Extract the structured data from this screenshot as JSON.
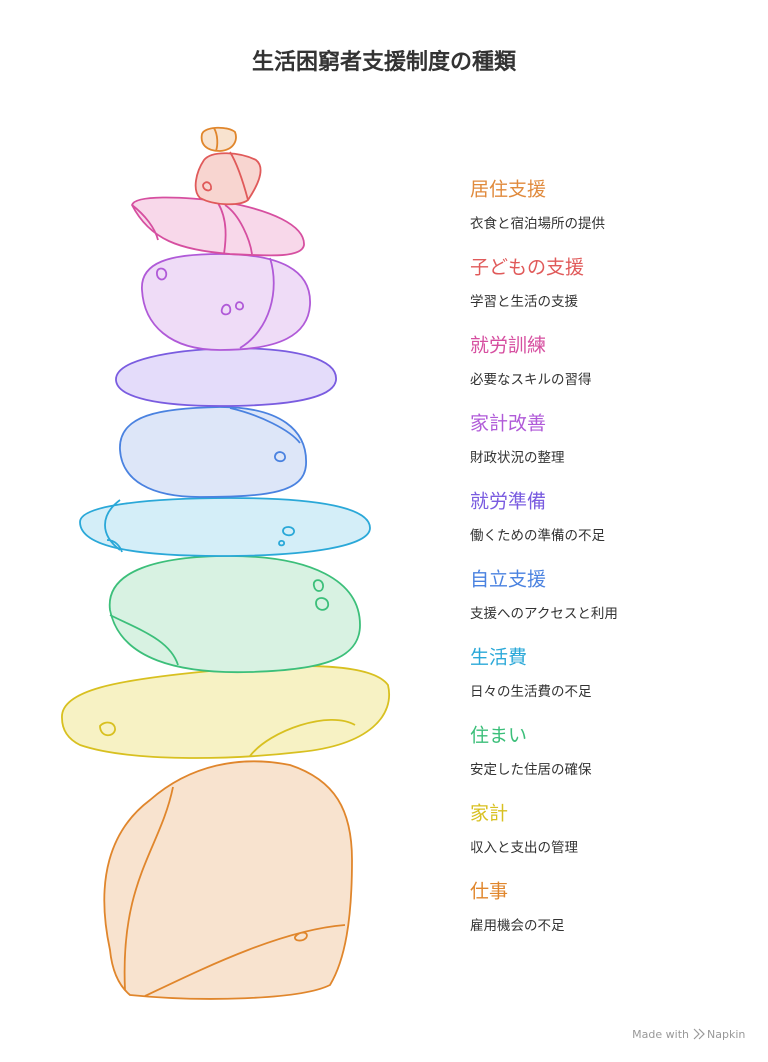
{
  "header": {
    "title": "生活困窮者支援制度の種類"
  },
  "items": [
    {
      "label": "居住支援",
      "description": "衣食と宿泊場所の提供",
      "color": "#e08a3c"
    },
    {
      "label": "子どもの支援",
      "description": "学習と生活の支援",
      "color": "#e05a5a"
    },
    {
      "label": "就労訓練",
      "description": "必要なスキルの習得",
      "color": "#d64fa0"
    },
    {
      "label": "家計改善",
      "description": "財政状況の整理",
      "color": "#b05ad8"
    },
    {
      "label": "就労準備",
      "description": "働くための準備の不足",
      "color": "#7a5ce0"
    },
    {
      "label": "自立支援",
      "description": "支援へのアクセスと利用",
      "color": "#4a82e0"
    },
    {
      "label": "生活費",
      "description": "日々の生活費の不足",
      "color": "#2aa8d8"
    },
    {
      "label": "住まい",
      "description": "安定した住居の確保",
      "color": "#3cbf7a"
    },
    {
      "label": "家計",
      "description": "収入と支出の管理",
      "color": "#d8c020"
    },
    {
      "label": "仕事",
      "description": "雇用機会の不足",
      "color": "#e0862c"
    }
  ],
  "footer": {
    "made_with": "Made with",
    "brand": "Napkin"
  }
}
